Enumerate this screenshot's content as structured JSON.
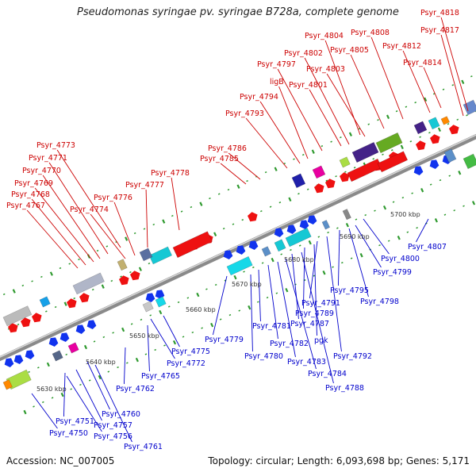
{
  "title": "Pseudomonas syringae pv. syringae B728a, complete genome",
  "footer": {
    "accession": "Accession: NC_007005",
    "summary": "Topology: circular; Length: 6,093,698 bp; Genes: 5,171"
  },
  "colors": {
    "forward_label": "#cc0000",
    "reverse_label": "#0000cc",
    "backbone": "#888888",
    "tick_dots": "#33aa33"
  },
  "ticks": [
    "5630 kbp",
    "5640 kbp",
    "5650 kbp",
    "5660 kbp",
    "5670 kbp",
    "5680 kbp",
    "5690 kbp",
    "5700 kbp"
  ],
  "forward_genes": [
    "Psyr_4767",
    "Psyr_4768",
    "Psyr_4769",
    "Psyr_4770",
    "Psyr_4771",
    "Psyr_4773",
    "Psyr_4774",
    "Psyr_4776",
    "Psyr_4777",
    "Psyr_4778",
    "Psyr_4785",
    "Psyr_4786",
    "Psyr_4793",
    "Psyr_4794",
    "ligB",
    "Psyr_4797",
    "Psyr_4801",
    "Psyr_4802",
    "Psyr_4803",
    "Psyr_4804",
    "Psyr_4805",
    "Psyr_4808",
    "Psyr_4812",
    "Psyr_4814",
    "Psyr_4817",
    "Psyr_4818"
  ],
  "reverse_genes": [
    "Psyr_4750",
    "Psyr_4751",
    "Psyr_4756",
    "Psyr_4757",
    "Psyr_4760",
    "Psyr_4761",
    "Psyr_4762",
    "Psyr_4765",
    "Psyr_4772",
    "Psyr_4775",
    "Psyr_4779",
    "Psyr_4780",
    "Psyr_4781",
    "Psyr_4782",
    "Psyr_4783",
    "Psyr_4784",
    "Psyr_4787",
    "Psyr_4788",
    "Psyr_4789",
    "pgk",
    "Psyr_4791",
    "Psyr_4792",
    "Psyr_4795",
    "Psyr_4798",
    "Psyr_4799",
    "Psyr_4800",
    "Psyr_4807"
  ]
}
